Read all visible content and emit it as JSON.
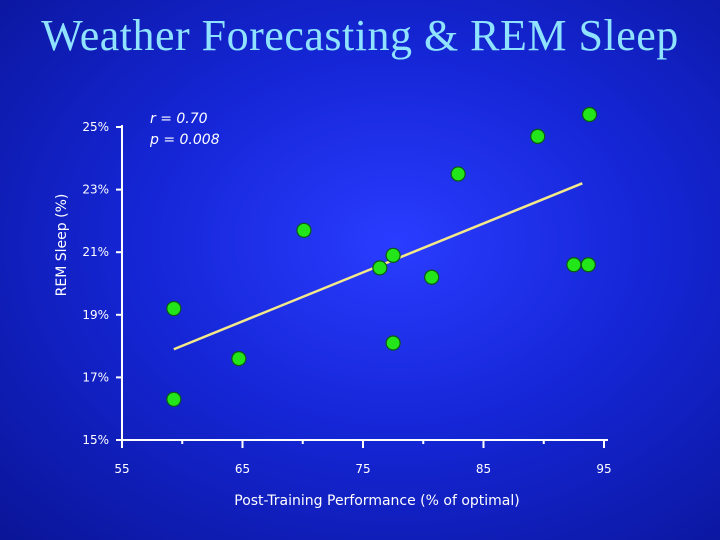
{
  "slide": {
    "title": "Weather Forecasting & REM Sleep"
  },
  "chart_data": {
    "type": "scatter",
    "title": "",
    "xlabel": "Post-Training Performance (% of optimal)",
    "ylabel": "REM Sleep (%)",
    "xlim": [
      55,
      95
    ],
    "ylim": [
      15,
      25
    ],
    "x_ticks": [
      55,
      65,
      75,
      85,
      95
    ],
    "x_tick_labels": [
      "55",
      "65",
      "75",
      "85",
      "95"
    ],
    "y_ticks": [
      15,
      17,
      19,
      21,
      23,
      25
    ],
    "y_tick_labels": [
      "15%",
      "17%",
      "19%",
      "21%",
      "23%",
      "25%"
    ],
    "grid": false,
    "legend": "none",
    "annotations": [
      "r = 0.70",
      "p = 0.008"
    ],
    "points": [
      {
        "x": 59.3,
        "y": 19.2
      },
      {
        "x": 59.3,
        "y": 16.3
      },
      {
        "x": 64.7,
        "y": 17.6
      },
      {
        "x": 70.1,
        "y": 21.7
      },
      {
        "x": 76.4,
        "y": 20.5
      },
      {
        "x": 77.5,
        "y": 20.9
      },
      {
        "x": 77.5,
        "y": 18.1
      },
      {
        "x": 80.7,
        "y": 20.2
      },
      {
        "x": 82.9,
        "y": 23.5
      },
      {
        "x": 89.5,
        "y": 24.7
      },
      {
        "x": 92.5,
        "y": 20.6
      },
      {
        "x": 93.7,
        "y": 20.6
      },
      {
        "x": 93.8,
        "y": 25.4
      }
    ],
    "trendline": {
      "x": [
        59.3,
        93.2
      ],
      "y": [
        17.9,
        23.2
      ]
    },
    "colors": {
      "point_fill": "#22e61a",
      "point_stroke": "#0a5a10",
      "trendline": "#f4e98a",
      "axis": "#ffffff",
      "title": "#8fe3ff"
    }
  }
}
